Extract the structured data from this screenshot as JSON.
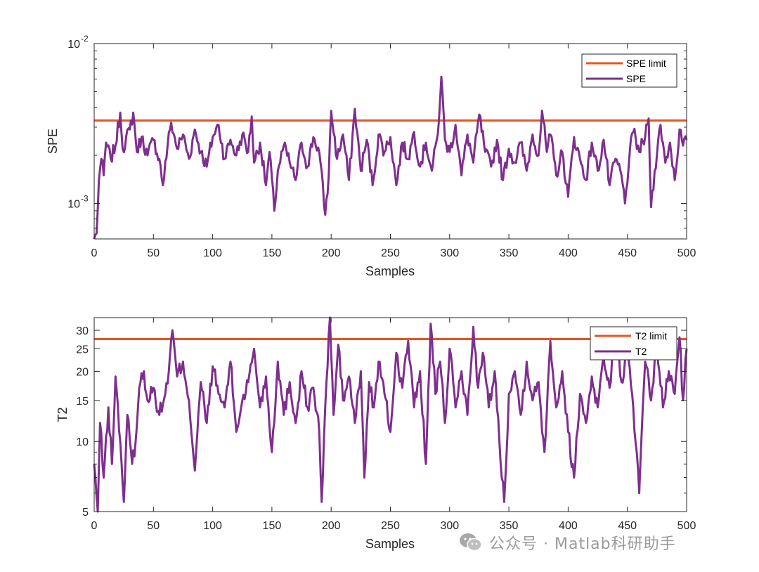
{
  "chart_data": [
    {
      "type": "line",
      "xlabel": "Samples",
      "ylabel": "SPE",
      "yscale": "log",
      "xlim": [
        0,
        500
      ],
      "ylim": [
        0.0006,
        0.01
      ],
      "xticks": [
        0,
        50,
        100,
        150,
        200,
        250,
        300,
        350,
        400,
        450,
        500
      ],
      "yticks": [
        {
          "value": 0.001,
          "base": "10",
          "exp": "-3"
        },
        {
          "value": 0.01,
          "base": "10",
          "exp": "-2"
        }
      ],
      "grid": false,
      "legend_position": "top-right",
      "legend": [
        "SPE limit",
        "SPE"
      ],
      "limit": 0.0033,
      "colors": {
        "limit": "#e95420",
        "series": "#7e2f8e"
      },
      "knots": [
        [
          0,
          0.0006
        ],
        [
          2,
          0.00065
        ],
        [
          4,
          0.0014
        ],
        [
          6,
          0.0019
        ],
        [
          8,
          0.0015
        ],
        [
          10,
          0.0024
        ],
        [
          14,
          0.0019
        ],
        [
          18,
          0.0023
        ],
        [
          22,
          0.0037
        ],
        [
          24,
          0.0022
        ],
        [
          30,
          0.0029
        ],
        [
          33,
          0.0037
        ],
        [
          36,
          0.0021
        ],
        [
          40,
          0.0026
        ],
        [
          45,
          0.002
        ],
        [
          50,
          0.0025
        ],
        [
          55,
          0.0019
        ],
        [
          58,
          0.0013
        ],
        [
          62,
          0.0023
        ],
        [
          65,
          0.0032
        ],
        [
          70,
          0.0022
        ],
        [
          75,
          0.0027
        ],
        [
          80,
          0.0019
        ],
        [
          85,
          0.0029
        ],
        [
          90,
          0.0021
        ],
        [
          95,
          0.0017
        ],
        [
          100,
          0.0026
        ],
        [
          105,
          0.0031
        ],
        [
          110,
          0.0019
        ],
        [
          115,
          0.0025
        ],
        [
          120,
          0.002
        ],
        [
          125,
          0.0027
        ],
        [
          130,
          0.0021
        ],
        [
          133,
          0.0035
        ],
        [
          135,
          0.0018
        ],
        [
          140,
          0.0024
        ],
        [
          145,
          0.0013
        ],
        [
          148,
          0.0021
        ],
        [
          152,
          0.0009
        ],
        [
          155,
          0.0016
        ],
        [
          160,
          0.0023
        ],
        [
          165,
          0.0018
        ],
        [
          170,
          0.0014
        ],
        [
          175,
          0.0024
        ],
        [
          180,
          0.0017
        ],
        [
          185,
          0.0026
        ],
        [
          190,
          0.0021
        ],
        [
          195,
          0.00085
        ],
        [
          198,
          0.0015
        ],
        [
          200,
          0.0038
        ],
        [
          205,
          0.0019
        ],
        [
          210,
          0.0027
        ],
        [
          215,
          0.0014
        ],
        [
          220,
          0.0039
        ],
        [
          225,
          0.0016
        ],
        [
          230,
          0.0025
        ],
        [
          235,
          0.0013
        ],
        [
          240,
          0.0027
        ],
        [
          245,
          0.0021
        ],
        [
          250,
          0.0026
        ],
        [
          255,
          0.0013
        ],
        [
          260,
          0.0024
        ],
        [
          265,
          0.0019
        ],
        [
          270,
          0.0028
        ],
        [
          275,
          0.0017
        ],
        [
          280,
          0.0024
        ],
        [
          285,
          0.0016
        ],
        [
          290,
          0.0027
        ],
        [
          293,
          0.0062
        ],
        [
          296,
          0.0025
        ],
        [
          300,
          0.0021
        ],
        [
          305,
          0.0031
        ],
        [
          310,
          0.0015
        ],
        [
          315,
          0.0027
        ],
        [
          320,
          0.0018
        ],
        [
          325,
          0.0036
        ],
        [
          330,
          0.0021
        ],
        [
          335,
          0.0017
        ],
        [
          340,
          0.0025
        ],
        [
          345,
          0.0014
        ],
        [
          350,
          0.0022
        ],
        [
          355,
          0.0018
        ],
        [
          360,
          0.0024
        ],
        [
          365,
          0.0016
        ],
        [
          370,
          0.0027
        ],
        [
          375,
          0.002
        ],
        [
          378,
          0.0038
        ],
        [
          382,
          0.0021
        ],
        [
          385,
          0.0027
        ],
        [
          390,
          0.0015
        ],
        [
          395,
          0.0021
        ],
        [
          400,
          0.0011
        ],
        [
          405,
          0.0026
        ],
        [
          410,
          0.0019
        ],
        [
          415,
          0.0014
        ],
        [
          420,
          0.0024
        ],
        [
          425,
          0.0016
        ],
        [
          430,
          0.0025
        ],
        [
          435,
          0.0013
        ],
        [
          440,
          0.0019
        ],
        [
          445,
          0.0015
        ],
        [
          448,
          0.001
        ],
        [
          452,
          0.0021
        ],
        [
          455,
          0.0028
        ],
        [
          460,
          0.0021
        ],
        [
          465,
          0.0026
        ],
        [
          468,
          0.0034
        ],
        [
          470,
          0.00095
        ],
        [
          473,
          0.0016
        ],
        [
          478,
          0.0031
        ],
        [
          482,
          0.0018
        ],
        [
          486,
          0.0024
        ],
        [
          490,
          0.0014
        ],
        [
          494,
          0.0029
        ],
        [
          497,
          0.0023
        ],
        [
          500,
          0.0025
        ]
      ]
    },
    {
      "type": "line",
      "xlabel": "Samples",
      "ylabel": "T2",
      "yscale": "log",
      "xlim": [
        0,
        500
      ],
      "ylim": [
        5,
        34
      ],
      "xticks": [
        0,
        50,
        100,
        150,
        200,
        250,
        300,
        350,
        400,
        450,
        500
      ],
      "yticks": [
        5,
        10,
        15,
        20,
        25,
        30
      ],
      "grid": false,
      "legend_position": "top-right",
      "legend": [
        "T2 limit",
        "T2"
      ],
      "limit": 27.5,
      "colors": {
        "limit": "#e95420",
        "series": "#7e2f8e"
      },
      "knots": [
        [
          0,
          8
        ],
        [
          3,
          5
        ],
        [
          5,
          12
        ],
        [
          8,
          7
        ],
        [
          12,
          14
        ],
        [
          15,
          8
        ],
        [
          18,
          19
        ],
        [
          22,
          10
        ],
        [
          25,
          5.5
        ],
        [
          28,
          13
        ],
        [
          32,
          8
        ],
        [
          35,
          10
        ],
        [
          38,
          17
        ],
        [
          42,
          20
        ],
        [
          45,
          15
        ],
        [
          50,
          17
        ],
        [
          55,
          13
        ],
        [
          60,
          16
        ],
        [
          63,
          20
        ],
        [
          66,
          30
        ],
        [
          70,
          19
        ],
        [
          75,
          22
        ],
        [
          80,
          15
        ],
        [
          85,
          7.5
        ],
        [
          90,
          18
        ],
        [
          95,
          12
        ],
        [
          100,
          21
        ],
        [
          105,
          16
        ],
        [
          110,
          14
        ],
        [
          115,
          22
        ],
        [
          120,
          11
        ],
        [
          125,
          15
        ],
        [
          130,
          18
        ],
        [
          135,
          25
        ],
        [
          140,
          14
        ],
        [
          145,
          19
        ],
        [
          150,
          9
        ],
        [
          155,
          22
        ],
        [
          160,
          13
        ],
        [
          165,
          18
        ],
        [
          170,
          12
        ],
        [
          175,
          20
        ],
        [
          180,
          14
        ],
        [
          185,
          17
        ],
        [
          190,
          11
        ],
        [
          192,
          5.5
        ],
        [
          196,
          18
        ],
        [
          199,
          34
        ],
        [
          202,
          13
        ],
        [
          206,
          26
        ],
        [
          210,
          15
        ],
        [
          215,
          19
        ],
        [
          220,
          12
        ],
        [
          225,
          20
        ],
        [
          228,
          7
        ],
        [
          232,
          18
        ],
        [
          236,
          14
        ],
        [
          240,
          22
        ],
        [
          245,
          16
        ],
        [
          250,
          11
        ],
        [
          255,
          24
        ],
        [
          260,
          17
        ],
        [
          265,
          27
        ],
        [
          270,
          14
        ],
        [
          275,
          20
        ],
        [
          280,
          8
        ],
        [
          284,
          32
        ],
        [
          288,
          16
        ],
        [
          292,
          22
        ],
        [
          296,
          12
        ],
        [
          300,
          25
        ],
        [
          305,
          14
        ],
        [
          310,
          20
        ],
        [
          315,
          13
        ],
        [
          320,
          31
        ],
        [
          324,
          17
        ],
        [
          328,
          24
        ],
        [
          333,
          14
        ],
        [
          338,
          20
        ],
        [
          342,
          10
        ],
        [
          346,
          5.5
        ],
        [
          350,
          16
        ],
        [
          355,
          20
        ],
        [
          360,
          13
        ],
        [
          365,
          22
        ],
        [
          370,
          15
        ],
        [
          375,
          18
        ],
        [
          380,
          9
        ],
        [
          385,
          27
        ],
        [
          390,
          14
        ],
        [
          395,
          20
        ],
        [
          400,
          11
        ],
        [
          405,
          7
        ],
        [
          410,
          16
        ],
        [
          415,
          12
        ],
        [
          420,
          19
        ],
        [
          425,
          14
        ],
        [
          430,
          23
        ],
        [
          435,
          17
        ],
        [
          440,
          30
        ],
        [
          445,
          18
        ],
        [
          450,
          24
        ],
        [
          455,
          14
        ],
        [
          460,
          6
        ],
        [
          465,
          22
        ],
        [
          470,
          15
        ],
        [
          475,
          26
        ],
        [
          480,
          14
        ],
        [
          485,
          20
        ],
        [
          490,
          16
        ],
        [
          494,
          28
        ],
        [
          497,
          15
        ],
        [
          500,
          25
        ]
      ]
    }
  ],
  "watermark": {
    "text": "公众号 · Matlab科研助手",
    "icon": "wechat-icon"
  }
}
